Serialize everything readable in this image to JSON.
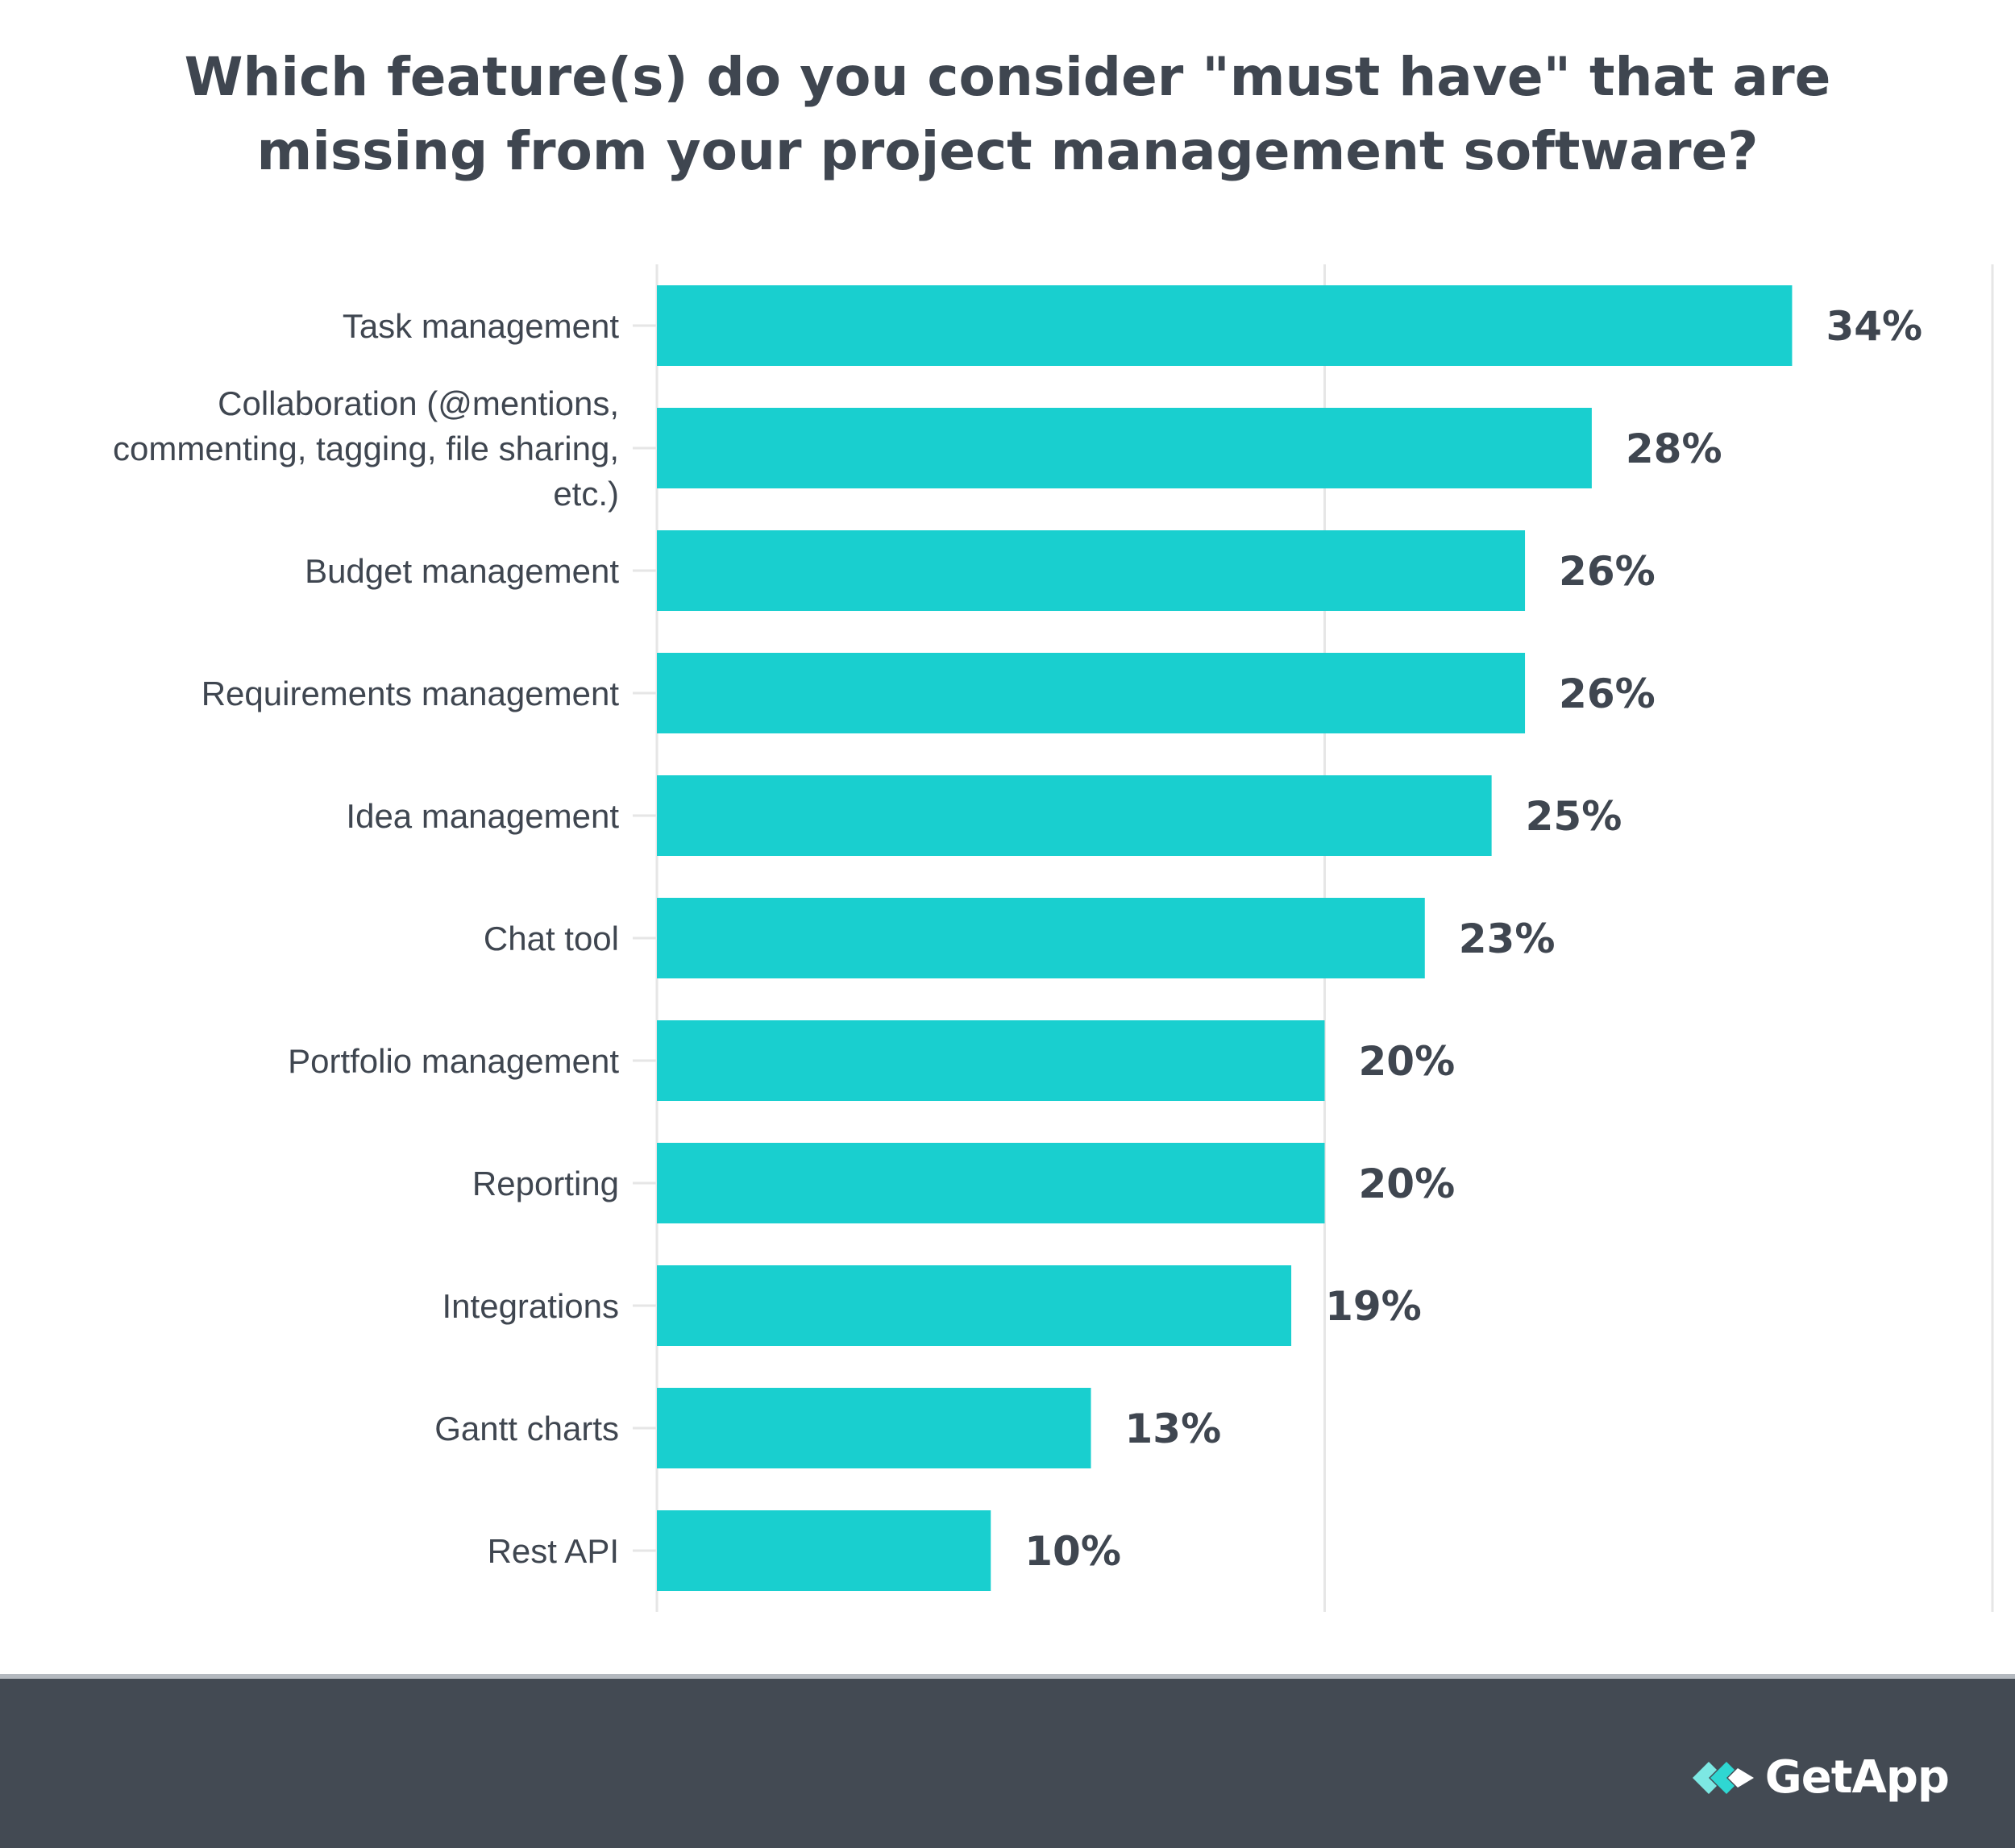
{
  "chart_data": {
    "type": "bar",
    "orientation": "horizontal",
    "title": "Which feature(s) do you consider \"must have\" that are missing from your project management software?",
    "categories": [
      "Task management",
      "Collaboration (@mentions, commenting, tagging, file sharing, etc.)",
      "Budget management",
      "Requirements management",
      "Idea management",
      "Chat tool",
      "Portfolio management",
      "Reporting",
      "Integrations",
      "Gantt charts",
      "Rest API"
    ],
    "category_label_lines": [
      [
        "Task management"
      ],
      [
        "Collaboration (@mentions,",
        "commenting, tagging, file sharing,",
        "etc.)"
      ],
      [
        "Budget management"
      ],
      [
        "Requirements management"
      ],
      [
        "Idea management"
      ],
      [
        "Chat tool"
      ],
      [
        "Portfolio management"
      ],
      [
        "Reporting"
      ],
      [
        "Integrations"
      ],
      [
        "Gantt charts"
      ],
      [
        "Rest API"
      ]
    ],
    "values": [
      34,
      28,
      26,
      26,
      25,
      23,
      20,
      20,
      19,
      13,
      10
    ],
    "value_labels": [
      "34%",
      "28%",
      "26%",
      "26%",
      "25%",
      "23%",
      "20%",
      "20%",
      "19%",
      "13%",
      "10%"
    ],
    "unit": "%",
    "xlim": [
      0,
      40
    ],
    "grid": true,
    "legend": "none",
    "colors": {
      "bar": "#19cfcf",
      "text": "#3f4650",
      "grid": "#e6e6e6"
    }
  },
  "footer": {
    "brand": "GetApp",
    "background": "#434a53",
    "logo_icon": "getapp-chevrons-icon"
  }
}
